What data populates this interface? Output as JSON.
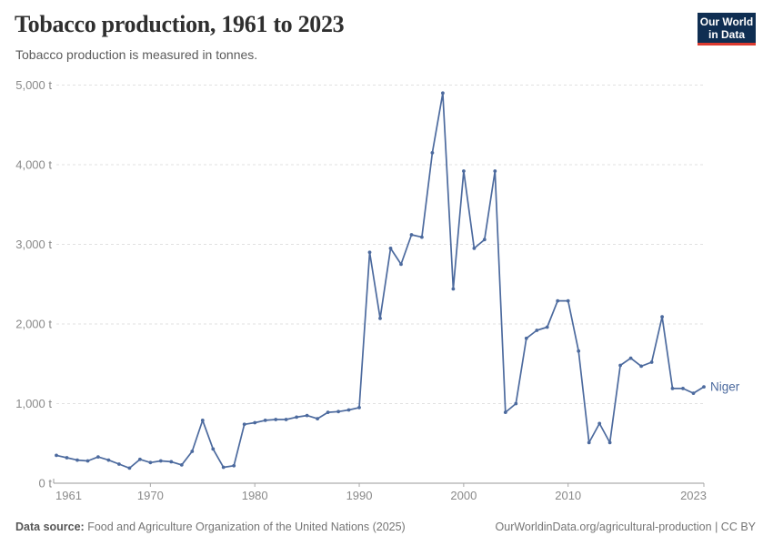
{
  "header": {
    "title": "Tobacco production, 1961 to 2023",
    "subtitle": "Tobacco production is measured in tonnes.",
    "logo": {
      "line1": "Our World",
      "line2": "in Data"
    }
  },
  "chart_data": {
    "type": "line",
    "title": "Tobacco production, 1961 to 2023",
    "subtitle": "Tobacco production is measured in tonnes.",
    "unit": "tonnes",
    "xlabel": "",
    "ylabel": "",
    "xlim": [
      1961,
      2023
    ],
    "ylim": [
      0,
      5000
    ],
    "grid": "dashed-horizontal",
    "legend_position": "end-of-line-label",
    "xticks": [
      {
        "year": 1961,
        "label": "1961"
      },
      {
        "year": 1970,
        "label": "1970"
      },
      {
        "year": 1980,
        "label": "1980"
      },
      {
        "year": 1990,
        "label": "1990"
      },
      {
        "year": 2000,
        "label": "2000"
      },
      {
        "year": 2010,
        "label": "2010"
      },
      {
        "year": 2023,
        "label": "2023"
      }
    ],
    "yticks": [
      {
        "value": 0,
        "label": "0 t"
      },
      {
        "value": 1000,
        "label": "1,000 t"
      },
      {
        "value": 2000,
        "label": "2,000 t"
      },
      {
        "value": 3000,
        "label": "3,000 t"
      },
      {
        "value": 4000,
        "label": "4,000 t"
      },
      {
        "value": 5000,
        "label": "5,000 t"
      }
    ],
    "series": [
      {
        "name": "Niger",
        "color": "#4c6a9e",
        "x": [
          1961,
          1962,
          1963,
          1964,
          1965,
          1966,
          1967,
          1968,
          1969,
          1970,
          1971,
          1972,
          1973,
          1974,
          1975,
          1976,
          1977,
          1978,
          1979,
          1980,
          1981,
          1982,
          1983,
          1984,
          1985,
          1986,
          1987,
          1988,
          1989,
          1990,
          1991,
          1992,
          1993,
          1994,
          1995,
          1996,
          1997,
          1998,
          1999,
          2000,
          2001,
          2002,
          2003,
          2004,
          2005,
          2006,
          2007,
          2008,
          2009,
          2010,
          2011,
          2012,
          2013,
          2014,
          2015,
          2016,
          2017,
          2018,
          2019,
          2020,
          2021,
          2022,
          2023
        ],
        "values": [
          350,
          320,
          290,
          280,
          330,
          290,
          240,
          190,
          300,
          260,
          280,
          270,
          230,
          400,
          790,
          430,
          200,
          220,
          740,
          760,
          790,
          800,
          800,
          830,
          850,
          810,
          890,
          900,
          920,
          950,
          2900,
          2070,
          2950,
          2750,
          3120,
          3090,
          4150,
          4900,
          2440,
          3920,
          2950,
          3060,
          3920,
          890,
          1000,
          1820,
          1920,
          1960,
          2290,
          2290,
          1660,
          510,
          750,
          510,
          1480,
          1570,
          1470,
          1520,
          2090,
          1190,
          1190,
          1130,
          1210
        ]
      }
    ]
  },
  "footer": {
    "source_label": "Data source:",
    "source_text": " Food and Agriculture Organization of the United Nations (2025)",
    "link_text": "OurWorldinData.org/agricultural-production",
    "separator": " | ",
    "license": "CC BY"
  },
  "colors": {
    "line": "#4c6a9e",
    "grid": "#e1e1e1",
    "axis": "#9a9a9a",
    "tick_text": "#8a8a8a",
    "tick_mark": "#a8a8a8"
  }
}
